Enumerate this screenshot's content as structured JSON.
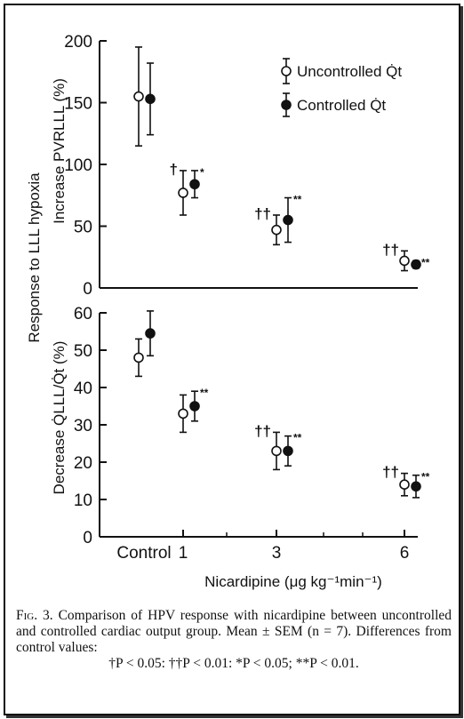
{
  "chart_data": {
    "type": "scatter",
    "x_categories": [
      "Control",
      "1",
      "3",
      "6"
    ],
    "xlabel": "Nicardipine (μg kg⁻¹min⁻¹)",
    "shared_ylabel": "Response to LLL hypoxia",
    "legend": [
      {
        "name": "Uncontrolled Q̇t",
        "marker": "open-circle"
      },
      {
        "name": "Controlled Q̇t",
        "marker": "filled-circle"
      }
    ],
    "legend_placement": "top-right",
    "panels": [
      {
        "id": "top",
        "ylabel": "Increase PVRLLL (%)",
        "ylim": [
          0,
          200
        ],
        "yticks": [
          "0",
          "50",
          "100",
          "150",
          "200"
        ],
        "series": [
          {
            "name": "Uncontrolled Q̇t",
            "values": [
              155,
              77,
              47,
              22
            ],
            "sem": [
              40,
              18,
              12,
              8
            ],
            "marks": [
              "",
              "†",
              "††",
              "††"
            ]
          },
          {
            "name": "Controlled Q̇t",
            "values": [
              153,
              84,
              55,
              19
            ],
            "sem": [
              29,
              11,
              18,
              3
            ],
            "marks": [
              "",
              "*",
              "**",
              "**"
            ]
          }
        ]
      },
      {
        "id": "bottom",
        "ylabel": "Decrease Q̇LLL/Q̇t (%)",
        "ylim": [
          0,
          60
        ],
        "yticks": [
          "0",
          "10",
          "20",
          "30",
          "40",
          "50",
          "60"
        ],
        "series": [
          {
            "name": "Uncontrolled Q̇t",
            "values": [
              48,
              33,
              23,
              14
            ],
            "sem": [
              5,
              5,
              5,
              3
            ],
            "marks": [
              "",
              "",
              "††",
              "††"
            ]
          },
          {
            "name": "Controlled Q̇t",
            "values": [
              54.5,
              35,
              23,
              13.5
            ],
            "sem": [
              6,
              4,
              4,
              3
            ],
            "marks": [
              "",
              "**",
              "**",
              "**"
            ]
          }
        ]
      }
    ]
  },
  "caption": {
    "fig_label": "Fig. 3.",
    "text": "Comparison of HPV response with nicardipine between uncontrolled and controlled cardiac output group. Mean ± SEM (n = 7). Differences from control values:",
    "significance": "†P < 0.05: ††P < 0.01: *P < 0.05; **P < 0.01."
  }
}
